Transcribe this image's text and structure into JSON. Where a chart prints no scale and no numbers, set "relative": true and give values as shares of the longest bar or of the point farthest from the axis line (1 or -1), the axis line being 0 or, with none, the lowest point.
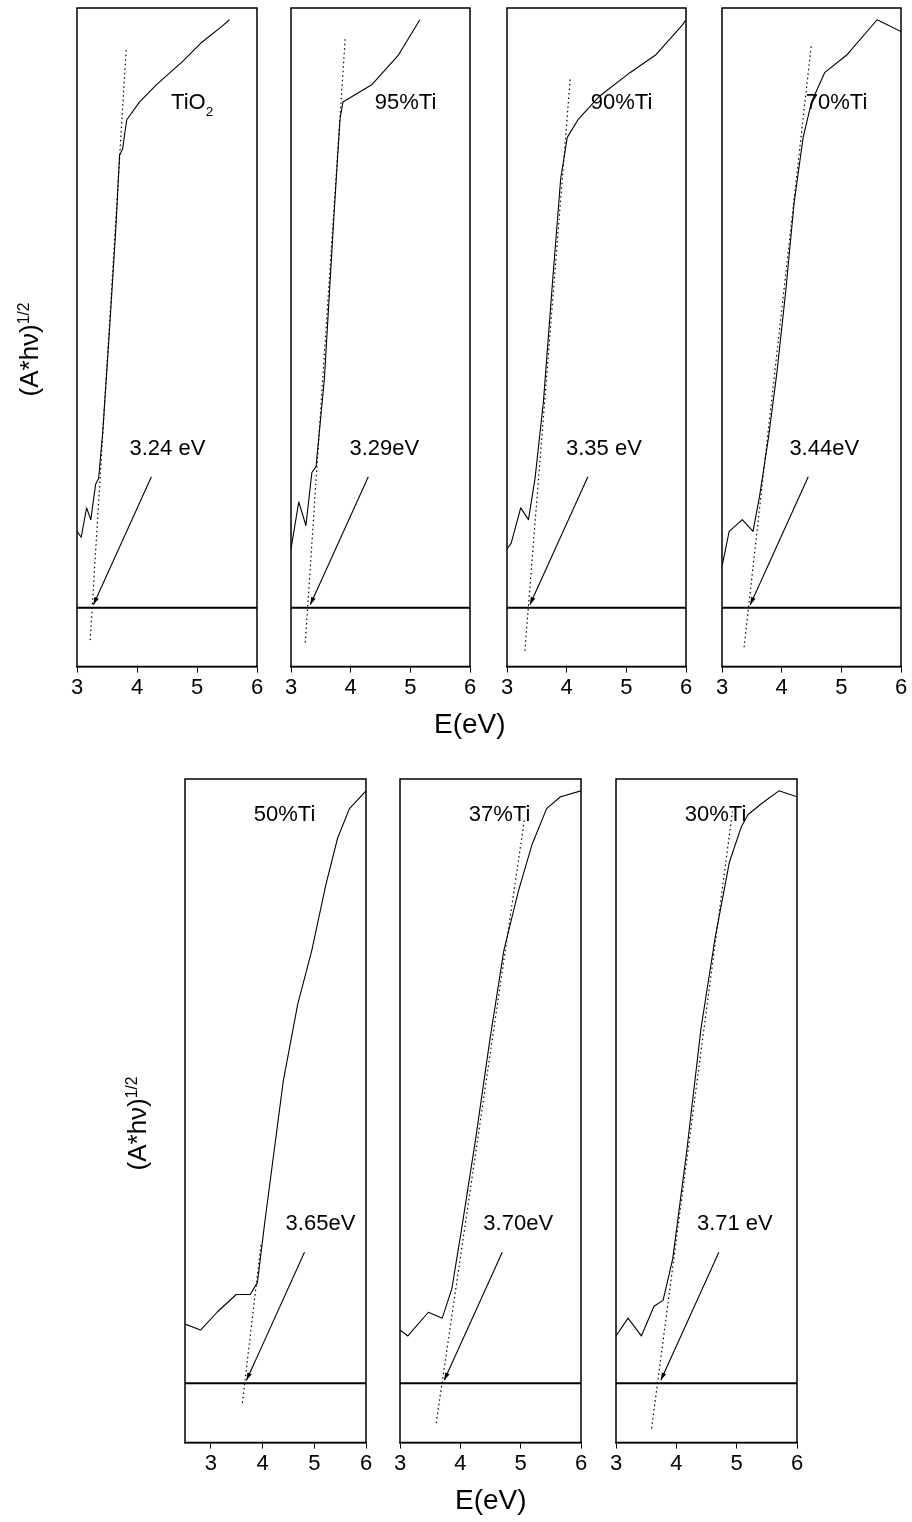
{
  "chart_data": [
    {
      "type": "line",
      "title": "TiO$_{2}$",
      "ylabel": "(A*hν)$^{1/2}$",
      "relative": true,
      "xlim": [
        3,
        6
      ],
      "xticks": [
        3,
        4,
        5,
        6
      ],
      "series": [
        {
          "color": "#000000",
          "x": [
            3.0,
            3.07,
            3.16,
            3.23,
            3.31,
            3.36,
            3.43,
            3.54,
            3.65,
            3.71,
            3.76,
            3.8,
            3.83,
            4.04,
            4.33,
            4.77,
            5.06,
            5.43,
            5.54
          ],
          "values": [
            0.13,
            0.12,
            0.17,
            0.15,
            0.21,
            0.22,
            0.3,
            0.47,
            0.65,
            0.77,
            0.78,
            0.81,
            0.83,
            0.86,
            0.89,
            0.93,
            0.96,
            0.99,
            1.0
          ]
        },
        {
          "color": "#000000",
          "line_style": "dotted",
          "x": [
            3.22,
            3.82
          ],
          "values": [
            -0.055,
            0.95
          ]
        }
      ],
      "ref_lines": [
        {
          "axis": "y",
          "value": 0,
          "color": "#000000"
        }
      ],
      "annotations": [
        {
          "text": "3.24 eV",
          "x": 3.24,
          "y": 0
        }
      ]
    },
    {
      "type": "line",
      "title": "95%Ti",
      "xlabel": "E(eV)",
      "relative": true,
      "xlim": [
        3,
        6
      ],
      "xticks": [
        3,
        4,
        5,
        6
      ],
      "series": [
        {
          "color": "#000000",
          "x": [
            3.0,
            3.13,
            3.25,
            3.35,
            3.42,
            3.56,
            3.71,
            3.82,
            3.87,
            4.36,
            4.8,
            5.16
          ],
          "values": [
            0.1,
            0.18,
            0.14,
            0.23,
            0.24,
            0.39,
            0.65,
            0.83,
            0.86,
            0.89,
            0.94,
            1.0
          ]
        },
        {
          "color": "#000000",
          "line_style": "dotted",
          "x": [
            3.24,
            3.91
          ],
          "values": [
            -0.059,
            0.97
          ]
        }
      ],
      "ref_lines": [
        {
          "axis": "y",
          "value": 0,
          "color": "#000000"
        }
      ],
      "annotations": [
        {
          "text": "3.29eV",
          "x": 3.29,
          "y": 0
        }
      ]
    },
    {
      "type": "line",
      "title": "90%Ti",
      "relative": true,
      "xlim": [
        3,
        6
      ],
      "xticks": [
        3,
        4,
        5,
        6
      ],
      "series": [
        {
          "color": "#000000",
          "x": [
            3.0,
            3.07,
            3.23,
            3.36,
            3.47,
            3.61,
            3.76,
            3.9,
            4.01,
            4.19,
            4.55,
            5.06,
            5.49,
            5.93,
            6.0
          ],
          "values": [
            0.1,
            0.11,
            0.17,
            0.15,
            0.22,
            0.35,
            0.55,
            0.73,
            0.8,
            0.83,
            0.87,
            0.91,
            0.94,
            0.99,
            1.0
          ]
        },
        {
          "color": "#000000",
          "line_style": "dotted",
          "x": [
            3.3,
            4.06
          ],
          "values": [
            -0.073,
            0.9
          ]
        }
      ],
      "ref_lines": [
        {
          "axis": "y",
          "value": 0,
          "color": "#000000"
        }
      ],
      "annotations": [
        {
          "text": "3.35 eV",
          "x": 3.35,
          "y": 0
        }
      ]
    },
    {
      "type": "line",
      "title": "70%Ti",
      "relative": true,
      "xlim": [
        3,
        6
      ],
      "xticks": [
        3,
        4,
        5,
        6
      ],
      "series": [
        {
          "color": "#000000",
          "x": [
            3.0,
            3.12,
            3.34,
            3.52,
            3.63,
            3.78,
            3.92,
            4.07,
            4.21,
            4.36,
            4.5,
            4.72,
            5.09,
            5.6,
            6.0
          ],
          "values": [
            0.07,
            0.13,
            0.15,
            0.13,
            0.19,
            0.29,
            0.4,
            0.54,
            0.69,
            0.8,
            0.86,
            0.91,
            0.94,
            1.0,
            0.98
          ]
        },
        {
          "color": "#000000",
          "line_style": "dotted",
          "x": [
            3.37,
            4.5
          ],
          "values": [
            -0.067,
            0.96
          ]
        }
      ],
      "ref_lines": [
        {
          "axis": "y",
          "value": 0,
          "color": "#000000"
        }
      ],
      "annotations": [
        {
          "text": "3.44eV",
          "x": 3.44,
          "y": 0
        }
      ]
    },
    {
      "type": "line",
      "title": "50%Ti",
      "ylabel": "(A*hν)$^{1/2}$",
      "relative": true,
      "xlim": [
        2.5,
        6
      ],
      "xticks": [
        3,
        4,
        5,
        6
      ],
      "series": [
        {
          "color": "#000000",
          "x": [
            2.5,
            2.8,
            3.12,
            3.49,
            3.76,
            3.9,
            4.04,
            4.22,
            4.4,
            4.68,
            4.95,
            5.22,
            5.45,
            5.68,
            6.0
          ],
          "values": [
            0.1,
            0.09,
            0.12,
            0.15,
            0.15,
            0.17,
            0.27,
            0.39,
            0.51,
            0.64,
            0.73,
            0.84,
            0.92,
            0.97,
            1.0
          ]
        },
        {
          "color": "#000000",
          "line_style": "dotted",
          "x": [
            3.61,
            3.97
          ],
          "values": [
            -0.033,
            0.235
          ]
        }
      ],
      "ref_lines": [
        {
          "axis": "y",
          "value": 0,
          "color": "#000000"
        }
      ],
      "annotations": [
        {
          "text": "3.65eV",
          "x": 3.65,
          "y": 0
        }
      ]
    },
    {
      "type": "line",
      "title": "37%Ti",
      "xlabel": "E(eV)",
      "relative": true,
      "xlim": [
        3,
        6
      ],
      "xticks": [
        3,
        4,
        5,
        6
      ],
      "series": [
        {
          "color": "#000000",
          "x": [
            3.0,
            3.13,
            3.47,
            3.7,
            3.86,
            4.02,
            4.25,
            4.49,
            4.72,
            4.96,
            5.19,
            5.43,
            5.66,
            6.0
          ],
          "values": [
            0.09,
            0.08,
            0.12,
            0.11,
            0.16,
            0.26,
            0.41,
            0.58,
            0.73,
            0.83,
            0.91,
            0.97,
            0.99,
            1.0
          ]
        },
        {
          "color": "#000000",
          "line_style": "dotted",
          "x": [
            3.6,
            5.06
          ],
          "values": [
            -0.067,
            0.95
          ]
        }
      ],
      "ref_lines": [
        {
          "axis": "y",
          "value": 0,
          "color": "#000000"
        }
      ],
      "annotations": [
        {
          "text": "3.70eV",
          "x": 3.7,
          "y": 0
        }
      ]
    },
    {
      "type": "line",
      "title": "30%Ti",
      "relative": true,
      "xlim": [
        3,
        6
      ],
      "xticks": [
        3,
        4,
        5,
        6
      ],
      "series": [
        {
          "color": "#000000",
          "x": [
            3.0,
            3.2,
            3.42,
            3.63,
            3.78,
            3.94,
            4.17,
            4.41,
            4.64,
            4.88,
            5.08,
            5.19,
            5.43,
            5.7,
            6.0
          ],
          "values": [
            0.08,
            0.11,
            0.08,
            0.13,
            0.14,
            0.21,
            0.39,
            0.6,
            0.75,
            0.88,
            0.94,
            0.96,
            0.98,
            1.0,
            0.99
          ]
        },
        {
          "color": "#000000",
          "line_style": "dotted",
          "x": [
            3.59,
            4.93
          ],
          "values": [
            -0.076,
            0.965
          ]
        }
      ],
      "ref_lines": [
        {
          "axis": "y",
          "value": 0,
          "color": "#000000"
        }
      ],
      "annotations": [
        {
          "text": "3.71 eV",
          "x": 3.71,
          "y": 0
        }
      ]
    }
  ]
}
